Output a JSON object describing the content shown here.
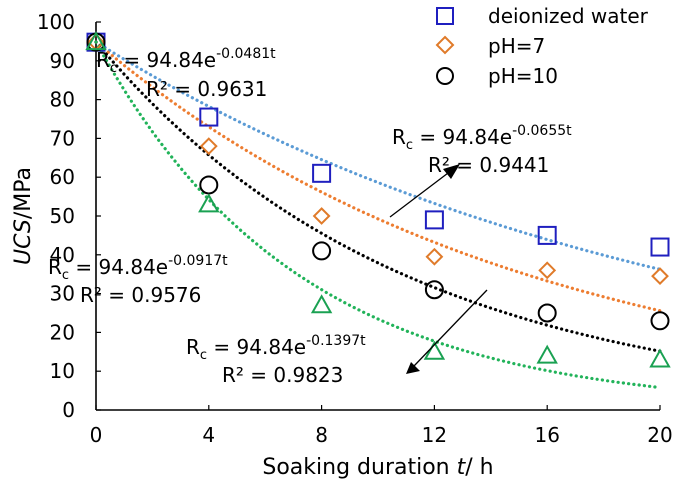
{
  "chart_data": {
    "type": "scatter",
    "xlabel": {
      "prefix": "Soaking duration ",
      "symbol": "t",
      "suffix": "/ h"
    },
    "ylabel": {
      "symbol": "UCS",
      "suffix": "/MPa"
    },
    "xlim": [
      0,
      20
    ],
    "ylim": [
      0,
      100
    ],
    "xticks": [
      "0",
      "4",
      "8",
      "12",
      "16",
      "20"
    ],
    "yticks": [
      "0",
      "10",
      "20",
      "30",
      "40",
      "50",
      "60",
      "70",
      "80",
      "90",
      "100"
    ],
    "legend_position": "top-right",
    "series": [
      {
        "name": "deionized water",
        "marker": "square",
        "color": "#1f1fbf",
        "fit_color": "#5b9bd5",
        "x": [
          0,
          4,
          8,
          12,
          16,
          20
        ],
        "y": [
          94.8,
          75.5,
          61,
          49,
          45,
          42
        ],
        "fit": {
          "a": 94.84,
          "b": 0.0481
        }
      },
      {
        "name": "pH=7",
        "marker": "diamond",
        "color": "#e07b2a",
        "fit_color": "#ed7d31",
        "x": [
          0,
          4,
          8,
          12,
          16,
          20
        ],
        "y": [
          94.8,
          68,
          50,
          39.5,
          36,
          34.5
        ],
        "fit": {
          "a": 94.84,
          "b": 0.0655
        }
      },
      {
        "name": "pH=10",
        "marker": "circle",
        "color": "#000000",
        "fit_color": "#000000",
        "x": [
          0,
          4,
          8,
          12,
          16,
          20
        ],
        "y": [
          94.8,
          58,
          41,
          31,
          25,
          23
        ],
        "fit": {
          "a": 94.84,
          "b": 0.0917
        }
      },
      {
        "name": "",
        "marker": "triangle",
        "color": "#1aa152",
        "fit_color": "#22b35a",
        "x": [
          0,
          4,
          8,
          12,
          16,
          20
        ],
        "y": [
          94.8,
          53,
          27,
          15,
          14,
          13
        ],
        "fit": {
          "a": 94.84,
          "b": 0.1397
        }
      }
    ],
    "annotations": [
      {
        "eq_main": "R",
        "eq_sub": "c",
        "eq_mid": " = 94.84e",
        "eq_exp": "-0.0481t",
        "r2": "R² = 0.9631"
      },
      {
        "eq_main": "R",
        "eq_sub": "c",
        "eq_mid": " = 94.84e",
        "eq_exp": "-0.0655t",
        "r2": "R² = 0.9441"
      },
      {
        "eq_main": "R",
        "eq_sub": "c",
        "eq_mid": " = 94.84e",
        "eq_exp": "-0.0917t",
        "r2": "R² = 0.9576"
      },
      {
        "eq_main": "R",
        "eq_sub": "c",
        "eq_mid": " = 94.84e",
        "eq_exp": "-0.1397t",
        "r2": "R² = 0.9823"
      }
    ]
  }
}
